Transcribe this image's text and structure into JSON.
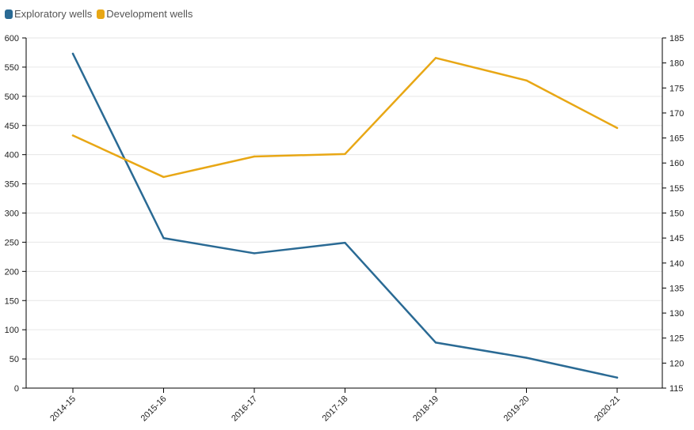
{
  "colors": {
    "exploratory": "#2a6a94",
    "development": "#e8a715",
    "grid": "#e6e6e6",
    "axis": "#000000"
  },
  "legend": [
    {
      "name": "Exploratory wells",
      "color": "#2a6a94"
    },
    {
      "name": "Development wells",
      "color": "#e8a715"
    }
  ],
  "chart_data": {
    "type": "line",
    "categories": [
      "2014-15",
      "2015-16",
      "2016-17",
      "2017-18",
      "2018-19",
      "2019-20",
      "2020-21"
    ],
    "series": [
      {
        "name": "Exploratory wells",
        "axis": "left",
        "color": "#2a6a94",
        "values": [
          573,
          257,
          231,
          249,
          78,
          52,
          18
        ]
      },
      {
        "name": "Development wells",
        "axis": "right",
        "color": "#e8a715",
        "values": [
          165.5,
          157.2,
          161.3,
          161.8,
          181,
          176.5,
          167
        ]
      }
    ],
    "y_left": {
      "min": 0,
      "max": 600,
      "step": 50
    },
    "y_right": {
      "min": 115,
      "max": 185,
      "step": 5
    },
    "grid": true,
    "legend_position": "top-left"
  }
}
